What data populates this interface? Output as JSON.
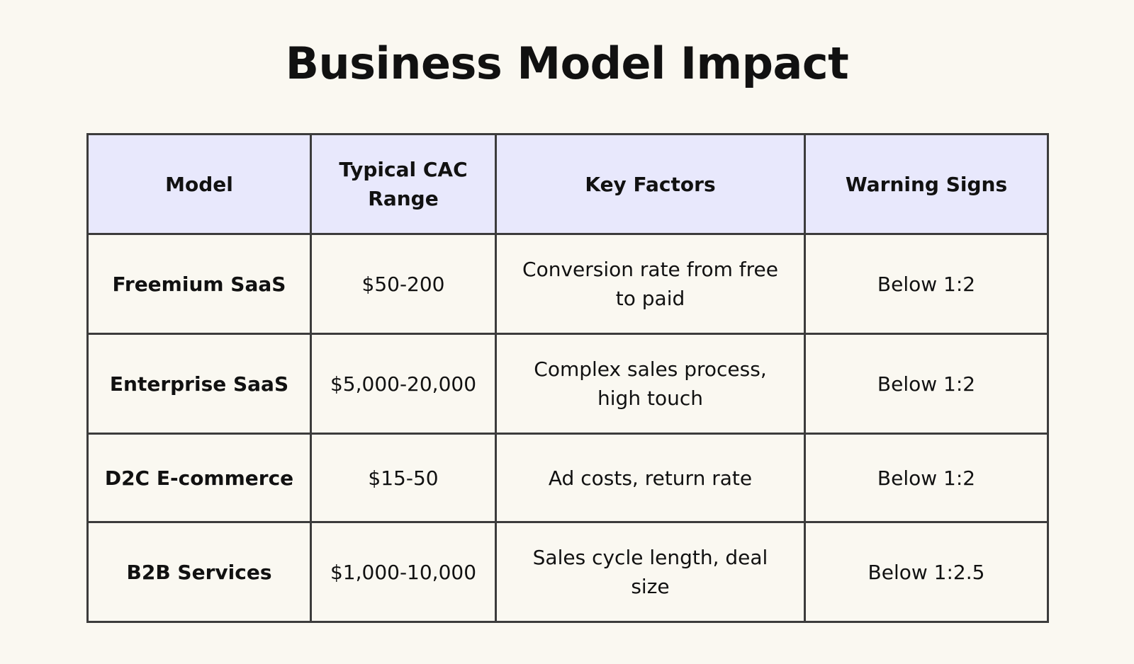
{
  "page": {
    "title": "Business Model Impact"
  },
  "table": {
    "headers": [
      "Model",
      "Typical CAC Range",
      "Key Factors",
      "Warning Signs"
    ],
    "rows": [
      {
        "model": "Freemium SaaS",
        "cac_range": "$50-200",
        "key_factors": "Conversion rate from free to paid",
        "warning_signs": "Below 1:2"
      },
      {
        "model": "Enterprise SaaS",
        "cac_range": "$5,000-20,000",
        "key_factors": "Complex sales process, high touch",
        "warning_signs": "Below 1:2"
      },
      {
        "model": "D2C E-commerce",
        "cac_range": "$15-50",
        "key_factors": "Ad costs, return rate",
        "warning_signs": "Below 1:2"
      },
      {
        "model": "B2B Services",
        "cac_range": "$1,000-10,000",
        "key_factors": "Sales cycle length, deal size",
        "warning_signs": "Below 1:2.5"
      }
    ]
  },
  "colors": {
    "background": "#faf8f1",
    "header_fill": "#e8e8fc",
    "border": "#3c3c3c",
    "text": "#111111"
  }
}
